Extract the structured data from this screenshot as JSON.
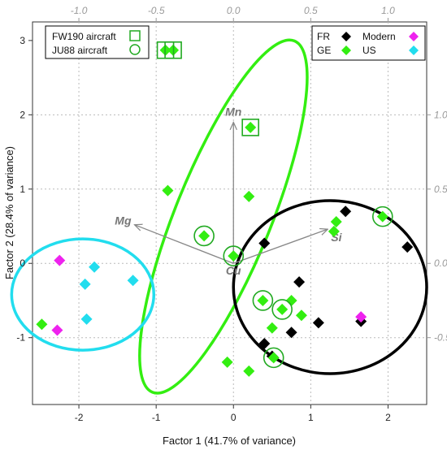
{
  "chart_data": {
    "type": "scatter",
    "xlabel": "Factor 1 (41.7% of variance)",
    "ylabel": "Factor 2 (28.4% of variance)",
    "xlim": [
      -2.6,
      2.5
    ],
    "ylim": [
      -1.9,
      3.25
    ],
    "x_ticks": [
      "-2",
      "-1",
      "0",
      "1",
      "2"
    ],
    "y_ticks": [
      "-1",
      "0",
      "1",
      "2",
      "3"
    ],
    "loadings_xlim": [
      -1.3,
      1.25
    ],
    "loadings_ylim": [
      -0.95,
      1.625
    ],
    "top_ticks": [
      "-1.0",
      "-0.5",
      "0.0",
      "0.5",
      "1.0"
    ],
    "right_ticks": [
      "-0.5",
      "0.0",
      "0.5",
      "1.0"
    ],
    "grid": true,
    "colors": {
      "FR": "#000000",
      "GE": "#33ee11",
      "Modern": "#ee22ee",
      "US": "#22ddee",
      "fw_box": "#22aa22",
      "ju_circle": "#22aa22",
      "arrow": "#888888"
    },
    "series": [
      {
        "name": "FR",
        "points": [
          [
            1.45,
            0.7
          ],
          [
            0.4,
            0.27
          ],
          [
            2.25,
            0.22
          ],
          [
            0.85,
            -0.25
          ],
          [
            1.1,
            -0.8
          ],
          [
            0.75,
            -0.93
          ],
          [
            0.4,
            -1.08
          ],
          [
            0.5,
            -1.25
          ],
          [
            1.65,
            -0.78
          ]
        ]
      },
      {
        "name": "GE",
        "points": [
          [
            -0.88,
            2.87
          ],
          [
            -0.78,
            2.87
          ],
          [
            0.22,
            1.83
          ],
          [
            -0.85,
            0.98
          ],
          [
            0.2,
            0.9
          ],
          [
            1.33,
            0.56
          ],
          [
            1.3,
            0.43
          ],
          [
            1.93,
            0.63
          ],
          [
            -0.38,
            0.37
          ],
          [
            0.0,
            0.1
          ],
          [
            0.38,
            -0.5
          ],
          [
            0.75,
            -0.5
          ],
          [
            0.63,
            -0.62
          ],
          [
            0.88,
            -0.7
          ],
          [
            0.5,
            -0.87
          ],
          [
            0.52,
            -1.27
          ],
          [
            -0.08,
            -1.33
          ],
          [
            0.2,
            -1.45
          ],
          [
            -2.48,
            -0.82
          ]
        ]
      },
      {
        "name": "Modern",
        "points": [
          [
            -2.25,
            0.04
          ],
          [
            -2.28,
            -0.9
          ],
          [
            1.65,
            -0.72
          ]
        ]
      },
      {
        "name": "US",
        "points": [
          [
            -1.8,
            -0.05
          ],
          [
            -1.92,
            -0.28
          ],
          [
            -1.3,
            -0.23
          ],
          [
            -1.9,
            -0.75
          ]
        ]
      }
    ],
    "fw190": [
      [
        -0.88,
        2.87
      ],
      [
        -0.78,
        2.87
      ],
      [
        0.22,
        1.83
      ]
    ],
    "ju88": [
      [
        1.93,
        0.63
      ],
      [
        -0.38,
        0.37
      ],
      [
        0.0,
        0.1
      ],
      [
        0.38,
        -0.5
      ],
      [
        0.63,
        -0.62
      ],
      [
        0.52,
        -1.27
      ]
    ],
    "arrows": [
      {
        "name": "Mn",
        "x": 0.0,
        "y": 0.95
      },
      {
        "name": "Mg",
        "x": -0.64,
        "y": 0.26
      },
      {
        "name": "Si",
        "x": 0.61,
        "y": 0.23
      },
      {
        "name": "Cu",
        "x": 0.0,
        "y": 0.0
      }
    ],
    "ellipses": [
      {
        "group": "GE",
        "cx": -0.13,
        "cy": 0.63,
        "rx": 2.55,
        "ry": 0.62,
        "angle": -68
      },
      {
        "group": "FR",
        "cx": 1.25,
        "cy": -0.32,
        "rx": 1.25,
        "ry": 1.12,
        "angle": 0
      },
      {
        "group": "US",
        "cx": -1.95,
        "cy": -0.42,
        "rx": 0.92,
        "ry": 0.72,
        "angle": 0
      }
    ],
    "legend_left": [
      "FW190 aircraft",
      "JU88 aircraft"
    ],
    "legend_right": [
      "FR",
      "Modern",
      "GE",
      "US"
    ]
  }
}
